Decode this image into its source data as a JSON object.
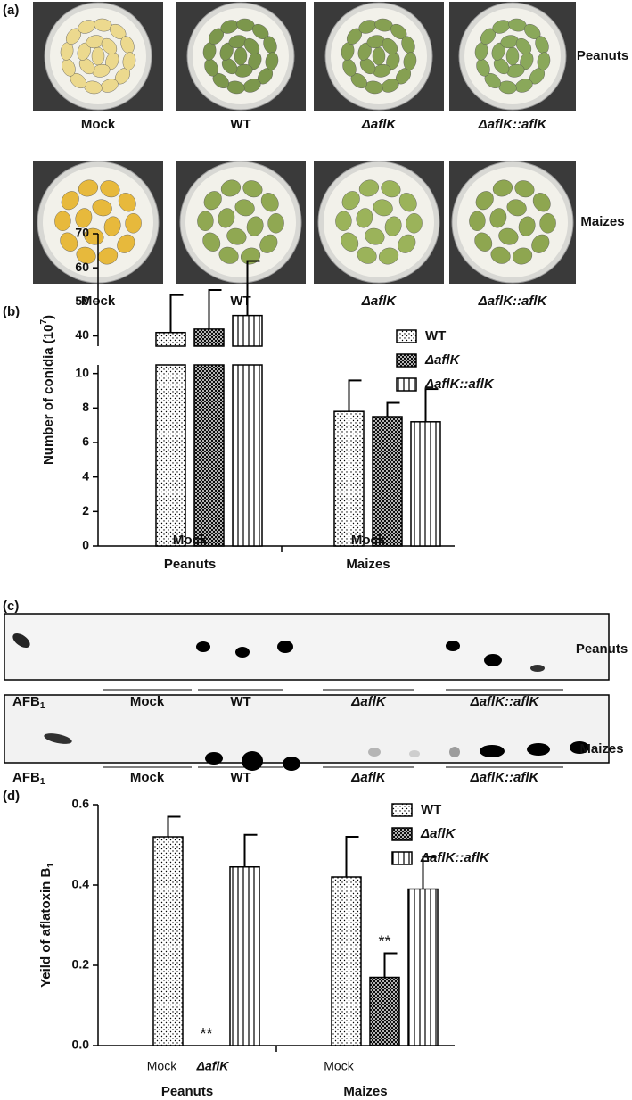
{
  "panels": [
    "(a)",
    "(b)",
    "(c)",
    "(d)"
  ],
  "photos": {
    "columns": [
      "Mock",
      "WT",
      "ΔaflK",
      "ΔaflK::aflK"
    ],
    "rows": [
      "Peanuts",
      "Maizes"
    ]
  },
  "tlc": {
    "marker": "AFB",
    "marker_sub": "1",
    "groups": [
      "Mock",
      "WT",
      "ΔaflK",
      "ΔaflK::aflK"
    ],
    "rows": [
      "Peanuts",
      "Maizes"
    ]
  },
  "chart_data": [
    {
      "type": "bar",
      "y_label": {
        "text": "Number of conidia (10",
        "sup": "7",
        "after": ")"
      },
      "categories": [
        "Peanuts",
        "Maizes"
      ],
      "sublabels": [
        [
          "Mock"
        ],
        [
          "Mock"
        ]
      ],
      "ylim": [
        [
          0,
          10.5
        ],
        [
          37,
          70
        ]
      ],
      "yticks": [
        [
          0,
          2,
          4,
          6,
          8,
          10
        ],
        [
          40,
          50,
          60,
          70
        ]
      ],
      "series": [
        {
          "pattern": "none",
          "values": [
            0,
            0
          ],
          "errors": [
            0,
            0
          ]
        },
        {
          "name": "WT",
          "pattern": "dots",
          "values": [
            41,
            7.8
          ],
          "errors": [
            11,
            1.8
          ]
        },
        {
          "name": "ΔaflK",
          "pattern": "crosshatch",
          "values": [
            42,
            7.5
          ],
          "errors": [
            11.5,
            0.8
          ]
        },
        {
          "name": "ΔaflK::aflK",
          "pattern": "vertical",
          "values": [
            46,
            7.2
          ],
          "errors": [
            16,
            1.9
          ]
        }
      ]
    },
    {
      "type": "bar",
      "y_label": {
        "text": "Yeild of aflatoxin B",
        "sub": "1",
        "after": ""
      },
      "categories": [
        "Peanuts",
        "Maizes"
      ],
      "sublabels": [
        [
          "Mock",
          "ΔaflK"
        ],
        [
          "Mock"
        ]
      ],
      "ylim": [
        0,
        0.6
      ],
      "yticks": [
        {
          "value": 0,
          "label": "0.0"
        },
        {
          "value": 0.2,
          "label": "0.2"
        },
        {
          "value": 0.4,
          "label": "0.4"
        },
        {
          "value": 0.6,
          "label": "0.6"
        }
      ],
      "series": [
        {
          "pattern": "none",
          "values": [
            0,
            0
          ],
          "errors": [
            0,
            0
          ]
        },
        {
          "name": "WT",
          "pattern": "dots",
          "values": [
            0.52,
            0.42
          ],
          "errors": [
            0.05,
            0.1
          ]
        },
        {
          "name": "ΔaflK",
          "pattern": "crosshatch",
          "values": [
            0,
            0.17
          ],
          "errors": [
            0,
            0.06
          ]
        },
        {
          "name": "ΔaflK::aflK",
          "pattern": "vertical",
          "values": [
            0.445,
            0.39
          ],
          "errors": [
            0.08,
            0.08
          ]
        }
      ],
      "annotations": [
        {
          "series": 2,
          "category": 0,
          "label": "**"
        },
        {
          "series": 2,
          "category": 1,
          "label": "**"
        }
      ]
    }
  ]
}
